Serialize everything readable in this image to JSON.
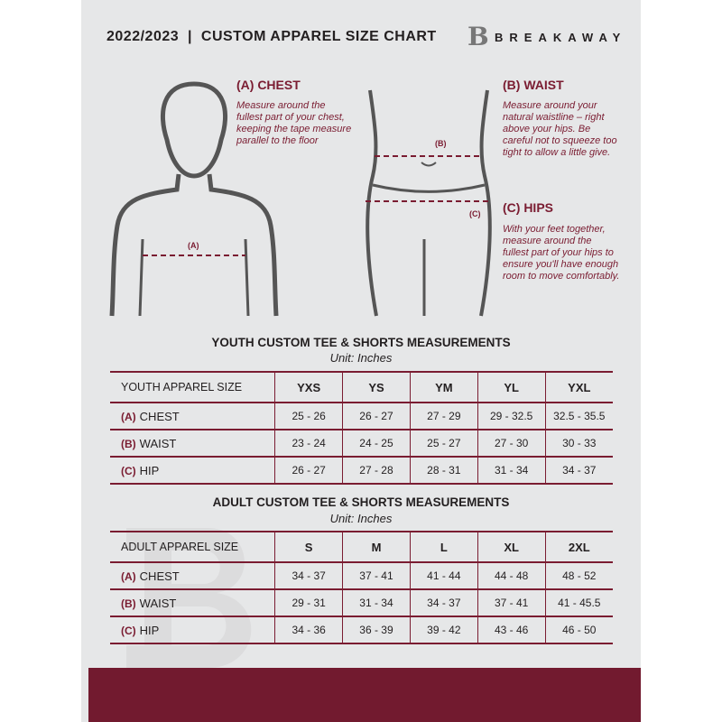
{
  "header": {
    "title": "2022/2023  |  CUSTOM APPAREL SIZE CHART",
    "brand": "BREAKAWAY",
    "logo_letter": "B"
  },
  "measure": {
    "chest": {
      "title": "(A) CHEST",
      "desc": "Measure around the fullest part of your chest, keeping the tape measure parallel to the floor",
      "marker": "(A)"
    },
    "waist": {
      "title": "(B) WAIST",
      "desc": "Measure around your natural waistline – right above your hips. Be careful not to squeeze too tight to allow a little give.",
      "marker": "(B)"
    },
    "hips": {
      "title": "(C) HIPS",
      "desc": "With your feet together, measure around the fullest part of your hips to ensure you'll have enough room to move comfortably.",
      "marker": "(C)"
    }
  },
  "colors": {
    "accent": "#7a1c31",
    "background": "#e6e7e8"
  },
  "youth": {
    "title": "YOUTH CUSTOM TEE & SHORTS MEASUREMENTS",
    "unit": "Unit: Inches",
    "header": [
      "YOUTH APPAREL SIZE",
      "YXS",
      "YS",
      "YM",
      "YL",
      "YXL"
    ],
    "rows": [
      {
        "letter": "(A)",
        "label": "CHEST",
        "values": [
          "25 - 26",
          "26 - 27",
          "27 - 29",
          "29 - 32.5",
          "32.5 - 35.5"
        ]
      },
      {
        "letter": "(B)",
        "label": "WAIST",
        "values": [
          "23 - 24",
          "24 - 25",
          "25 - 27",
          "27 - 30",
          "30 - 33"
        ]
      },
      {
        "letter": "(C)",
        "label": "HIP",
        "values": [
          "26 - 27",
          "27 - 28",
          "28 - 31",
          "31 - 34",
          "34 - 37"
        ]
      }
    ]
  },
  "adult": {
    "title": "ADULT CUSTOM TEE & SHORTS MEASUREMENTS",
    "unit": "Unit: Inches",
    "header": [
      "ADULT APPAREL SIZE",
      "S",
      "M",
      "L",
      "XL",
      "2XL"
    ],
    "rows": [
      {
        "letter": "(A)",
        "label": "CHEST",
        "values": [
          "34 - 37",
          "37 - 41",
          "41 - 44",
          "44 - 48",
          "48 - 52"
        ]
      },
      {
        "letter": "(B)",
        "label": "WAIST",
        "values": [
          "29 - 31",
          "31 - 34",
          "34 - 37",
          "37 - 41",
          "41 - 45.5"
        ]
      },
      {
        "letter": "(C)",
        "label": "HIP",
        "values": [
          "34 - 36",
          "36 - 39",
          "39 - 42",
          "43 - 46",
          "46 - 50"
        ]
      }
    ]
  }
}
